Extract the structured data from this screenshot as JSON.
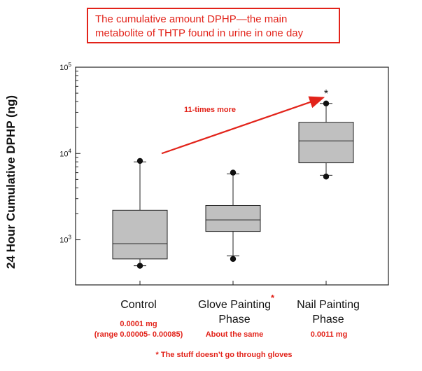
{
  "title": {
    "line1": "The cumulative amount DPHP—the main",
    "line2": "metabolite of THTP found in urine in one day"
  },
  "colors": {
    "accent_red": "#e2231a",
    "box_fill": "#c0c0c0",
    "axis": "#222222"
  },
  "chart_data": {
    "type": "box",
    "ylabel": "24 Hour Cumulative DPHP (ng)",
    "yscale": "log",
    "ylim": [
      300,
      100000
    ],
    "yticks": [
      {
        "value": 1000,
        "base": "10",
        "exp": "3"
      },
      {
        "value": 10000,
        "base": "10",
        "exp": "4"
      },
      {
        "value": 100000,
        "base": "10",
        "exp": "5"
      }
    ],
    "categories": [
      {
        "line1": "Control",
        "line2": ""
      },
      {
        "line1": "Glove Painting",
        "line2": "Phase"
      },
      {
        "line1": "Nail Painting",
        "line2": "Phase"
      }
    ],
    "boxes": [
      {
        "min": 500,
        "whisker_low": 500,
        "q1": 600,
        "median": 900,
        "q3": 2200,
        "whisker_high": 8000,
        "max": 8200
      },
      {
        "min": 600,
        "whisker_low": 650,
        "q1": 1250,
        "median": 1700,
        "q3": 2500,
        "whisker_high": 5800,
        "max": 6000
      },
      {
        "min": 5400,
        "whisker_low": 5600,
        "q1": 7800,
        "median": 14000,
        "q3": 23000,
        "whisker_high": 38000,
        "max": 38000
      }
    ],
    "annotations": {
      "arrow_label": "11-times more",
      "arrow_from": {
        "category": 0,
        "value": 10000
      },
      "arrow_to": {
        "category": 2,
        "value": 42000
      },
      "significance_marker": "*"
    },
    "grid": false,
    "legend": "none"
  },
  "notes": {
    "control": {
      "line1": "0.0001 mg",
      "line2": "(range 0.00005- 0.00085)"
    },
    "glove": {
      "line1": "About the same"
    },
    "nail": {
      "line1": "0.0011 mg"
    },
    "glove_star": "*",
    "footnote": "* The stuff doesn’t go through gloves"
  }
}
